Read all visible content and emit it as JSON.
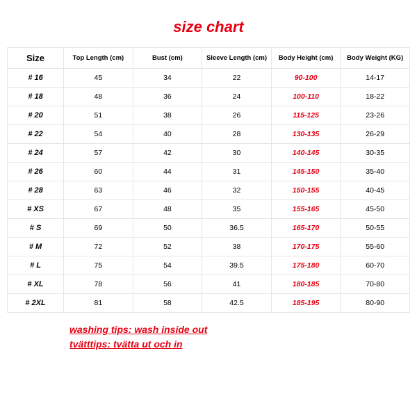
{
  "title": "size chart",
  "title_color": "#e60012",
  "border_color": "#e6e6e6",
  "highlight_color": "#e60012",
  "text_color": "#000000",
  "background_color": "#ffffff",
  "columns": [
    "Size",
    "Top Length (cm)",
    "Bust (cm)",
    "Sleeve Length (cm)",
    "Body Height (cm)",
    "Body Weight (KG)"
  ],
  "highlight_col_index": 4,
  "rows": [
    {
      "label": "# 16",
      "v": [
        "45",
        "34",
        "22",
        "90-100",
        "14-17"
      ]
    },
    {
      "label": "# 18",
      "v": [
        "48",
        "36",
        "24",
        "100-110",
        "18-22"
      ]
    },
    {
      "label": "# 20",
      "v": [
        "51",
        "38",
        "26",
        "115-125",
        "23-26"
      ]
    },
    {
      "label": "# 22",
      "v": [
        "54",
        "40",
        "28",
        "130-135",
        "26-29"
      ]
    },
    {
      "label": "# 24",
      "v": [
        "57",
        "42",
        "30",
        "140-145",
        "30-35"
      ]
    },
    {
      "label": "# 26",
      "v": [
        "60",
        "44",
        "31",
        "145-150",
        "35-40"
      ]
    },
    {
      "label": "# 28",
      "v": [
        "63",
        "46",
        "32",
        "150-155",
        "40-45"
      ]
    },
    {
      "label": "# XS",
      "v": [
        "67",
        "48",
        "35",
        "155-165",
        "45-50"
      ]
    },
    {
      "label": "# S",
      "v": [
        "69",
        "50",
        "36.5",
        "165-170",
        "50-55"
      ]
    },
    {
      "label": "# M",
      "v": [
        "72",
        "52",
        "38",
        "170-175",
        "55-60"
      ]
    },
    {
      "label": "# L",
      "v": [
        "75",
        "54",
        "39.5",
        "175-180",
        "60-70"
      ]
    },
    {
      "label": "# XL",
      "v": [
        "78",
        "56",
        "41",
        "180-185",
        "70-80"
      ]
    },
    {
      "label": "# 2XL",
      "v": [
        "81",
        "58",
        "42.5",
        "185-195",
        "80-90"
      ]
    }
  ],
  "tips": {
    "line1": "washing tips: wash inside out",
    "line2": "tvätttips: tvätta ut och in",
    "color": "#e60012"
  }
}
